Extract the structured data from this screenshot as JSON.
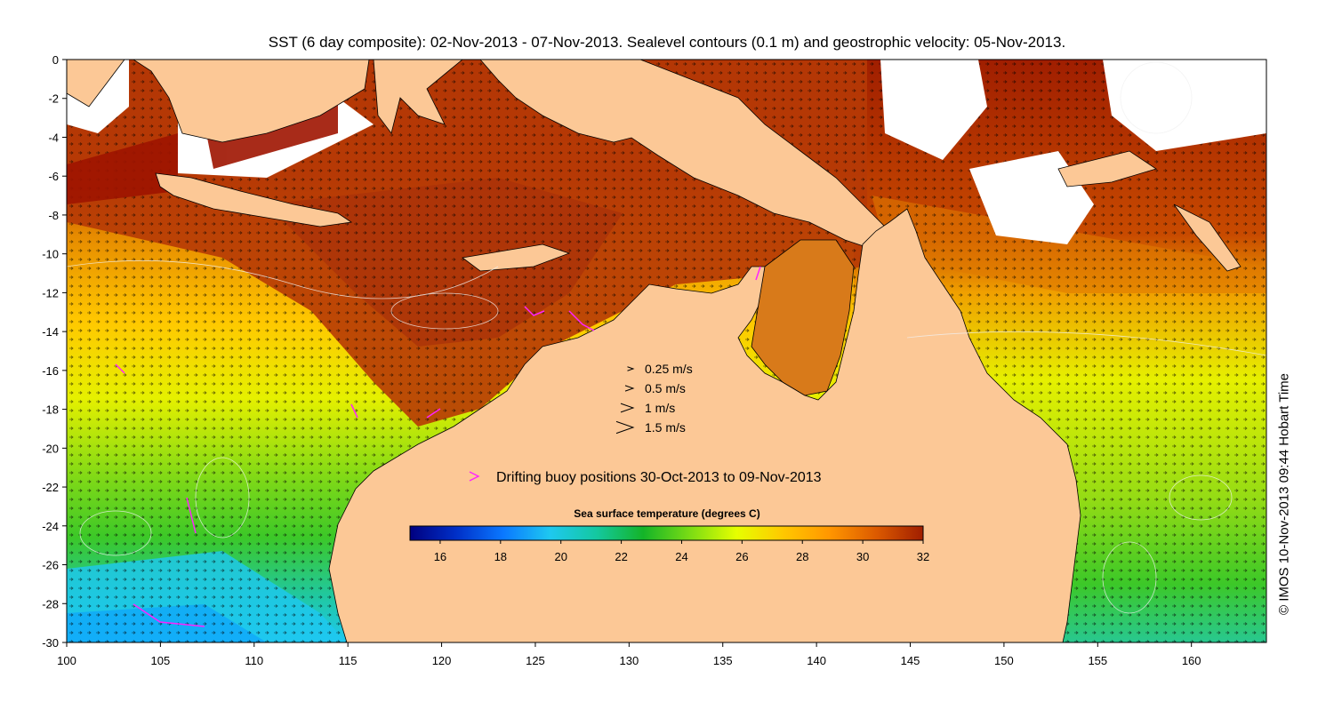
{
  "figure": {
    "title": "SST (6 day composite): 02-Nov-2013 - 07-Nov-2013. Sealevel contours (0.1 m) and geostrophic velocity: 05-Nov-2013.",
    "credit": "© IMOS 10-Nov-2013 09:44 Hobart Time"
  },
  "map": {
    "x_ticks": [
      "100",
      "105",
      "110",
      "115",
      "120",
      "125",
      "130",
      "135",
      "140",
      "145",
      "150",
      "155",
      "160"
    ],
    "y_ticks": [
      "0",
      "-2",
      "-4",
      "-6",
      "-8",
      "-10",
      "-12",
      "-14",
      "-16",
      "-18",
      "-20",
      "-22",
      "-24",
      "-26",
      "-28",
      "-30"
    ],
    "lon_range": [
      100,
      164
    ],
    "lat_range": [
      -30,
      0
    ],
    "land_color": "#fcc896"
  },
  "velocity_legend": {
    "items": [
      {
        "label": "0.25 m/s",
        "speed": 0.25
      },
      {
        "label": "0.5 m/s",
        "speed": 0.5
      },
      {
        "label": "1 m/s",
        "speed": 1
      },
      {
        "label": "1.5 m/s",
        "speed": 1.5
      }
    ]
  },
  "buoy_legend": {
    "label": "Drifting buoy positions 30-Oct-2013 to 09-Nov-2013",
    "color": "#ff22ff"
  },
  "colorbar": {
    "title": "Sea surface temperature (degrees C)",
    "ticks": [
      "16",
      "18",
      "20",
      "22",
      "24",
      "26",
      "28",
      "30",
      "32"
    ],
    "range": [
      15,
      32
    ],
    "colors": [
      "#000080",
      "#0030c8",
      "#0a78ff",
      "#1ec8f0",
      "#14c8a0",
      "#14b428",
      "#7adc14",
      "#e6ff00",
      "#ffc800",
      "#ff9600",
      "#dc5a00",
      "#a01e00"
    ]
  }
}
